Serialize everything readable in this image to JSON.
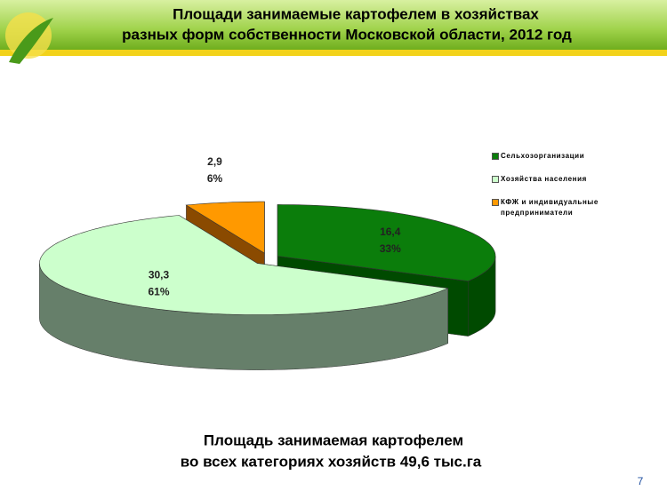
{
  "slide": {
    "title_lines": [
      "Площади занимаемые  картофелем в хозяйствах",
      "разных форм собственности Московской области, 2012 год"
    ],
    "footer_lines": [
      "Площадь занимаемая картофелем",
      "во всех категориях хозяйств 49,6 тыс.га"
    ],
    "page_number": "7"
  },
  "chart_data": {
    "type": "pie",
    "categories": [
      "Сельхозорганизации",
      "Хозяйства населения",
      "КФЖ и индивидуальные предприниматели"
    ],
    "values": [
      16.4,
      30.3,
      2.9
    ],
    "value_labels": [
      "16,4",
      "30,3",
      "2,9"
    ],
    "shares": [
      33,
      61,
      6
    ],
    "share_labels": [
      "33%",
      "61%",
      "6%"
    ],
    "colors": [
      "#0b7d0b",
      "#ccffcc",
      "#ff9900"
    ],
    "side_colors": [
      "#004a00",
      "#667f6a",
      "#8a4a00"
    ],
    "legend_position": "right"
  }
}
